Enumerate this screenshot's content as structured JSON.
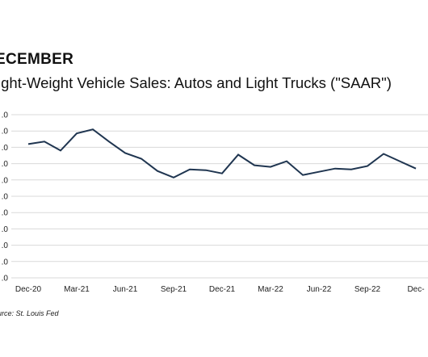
{
  "header": {
    "heading": "ECEMBER",
    "subtitle": "ight-Weight Vehicle Sales: Autos and Light Trucks (\"SAAR\")"
  },
  "footer": {
    "source": "urce: St. Louis Fed"
  },
  "chart_data": {
    "type": "line",
    "title": "ight-Weight Vehicle Sales: Autos and Light Trucks (\"SAAR\")",
    "xlabel": "",
    "ylabel": "",
    "ylim": [
      0,
      20
    ],
    "y_ticks": [
      0,
      2,
      4,
      6,
      8,
      10,
      12,
      14,
      16,
      18,
      20
    ],
    "y_tick_labels": [
      ".0",
      ".0",
      ".0",
      ".0",
      ".0",
      ".0",
      ".0",
      ".0",
      ".0",
      ".0",
      ".0"
    ],
    "x_tick_labels": [
      "Dec-20",
      "Mar-21",
      "Jun-21",
      "Sep-21",
      "Dec-21",
      "Mar-22",
      "Jun-22",
      "Sep-22",
      "Dec-"
    ],
    "x_tick_index": [
      0,
      3,
      6,
      9,
      12,
      15,
      18,
      21,
      24
    ],
    "grid": true,
    "legend": "none",
    "line_color": "#1f3550",
    "grid_color": "#d9d9d9",
    "x": [
      "Dec-20",
      "Jan-21",
      "Feb-21",
      "Mar-21",
      "Apr-21",
      "May-21",
      "Jun-21",
      "Jul-21",
      "Aug-21",
      "Sep-21",
      "Oct-21",
      "Nov-21",
      "Dec-21",
      "Jan-22",
      "Feb-22",
      "Mar-22",
      "Apr-22",
      "May-22",
      "Jun-22",
      "Jul-22",
      "Aug-22",
      "Sep-22",
      "Oct-22",
      "Nov-22",
      "Dec-22"
    ],
    "series": [
      {
        "values": [
          16.4,
          16.7,
          15.6,
          17.7,
          18.2,
          16.7,
          15.3,
          14.6,
          13.1,
          12.3,
          13.3,
          13.2,
          12.8,
          15.1,
          13.8,
          13.6,
          14.3,
          12.6,
          13.0,
          13.4,
          13.3,
          13.7,
          15.2,
          14.3,
          13.4
        ]
      }
    ]
  }
}
